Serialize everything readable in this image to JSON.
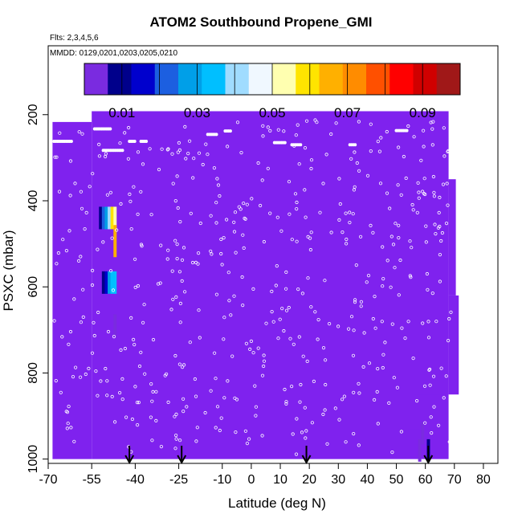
{
  "title": "ATOM2 Southbound Propene_GMI",
  "notes": {
    "flights": "Flts: 2,3,4,5,6",
    "dates": "MMDD: 0129,0201,0203,0205,0210"
  },
  "chart_data": {
    "type": "heatmap",
    "title": "ATOM2 Southbound Propene_GMI",
    "xlabel": "Latitude (deg N)",
    "ylabel": "PSXC (mbar)",
    "xlim": [
      -70,
      85
    ],
    "ylim": [
      1010,
      40
    ],
    "xticks": [
      -70,
      -55,
      -40,
      -25,
      -10,
      0,
      10,
      20,
      30,
      40,
      50,
      60,
      70,
      80
    ],
    "xtick_labels": [
      "-70",
      "-55",
      "-40",
      "-25",
      "-10",
      "0",
      "10",
      "20",
      "30",
      "40",
      "50",
      "60",
      "70",
      "80"
    ],
    "yticks": [
      200,
      400,
      600,
      800,
      1000
    ],
    "ytick_labels": [
      "200",
      "400",
      "600",
      "800",
      "1000"
    ],
    "colorbar": {
      "range": [
        0,
        0.1
      ],
      "ticks": [
        0.01,
        0.03,
        0.05,
        0.07,
        0.09
      ],
      "tick_labels": [
        "0.01",
        "0.03",
        "0.05",
        "0.07",
        "0.09"
      ],
      "colors": [
        "#7a2be0",
        "#00008b",
        "#0000cd",
        "#1c5fe0",
        "#009fe8",
        "#00bfff",
        "#a0dcff",
        "#f0f8ff",
        "#ffffb0",
        "#ffe400",
        "#ffb000",
        "#ff8c00",
        "#ff5000",
        "#ff0000",
        "#d00000",
        "#a01818"
      ]
    },
    "background_value": 0.0,
    "background_color": "#7f22ee",
    "high_value_cells": [
      {
        "lat": -52.5,
        "p": 440,
        "value": 0.012
      },
      {
        "lat": -51.5,
        "p": 440,
        "value": 0.022
      },
      {
        "lat": -50.5,
        "p": 440,
        "value": 0.03
      },
      {
        "lat": -49.5,
        "p": 440,
        "value": 0.042
      },
      {
        "lat": -48.5,
        "p": 440,
        "value": 0.058
      },
      {
        "lat": -47.5,
        "p": 440,
        "value": 0.05
      },
      {
        "lat": -47.5,
        "p": 490,
        "value": 0.065
      },
      {
        "lat": -51.5,
        "p": 590,
        "value": 0.008
      },
      {
        "lat": -50.5,
        "p": 590,
        "value": 0.018
      },
      {
        "lat": -49.5,
        "p": 590,
        "value": 0.028
      },
      {
        "lat": -48.5,
        "p": 590,
        "value": 0.034
      },
      {
        "lat": -47.5,
        "p": 590,
        "value": 0.036
      },
      {
        "lat": -47.5,
        "p": 690,
        "value": 0.004
      },
      {
        "lat": 57.5,
        "p": 980,
        "value": 0.006
      },
      {
        "lat": 60.5,
        "p": 980,
        "value": 0.008
      },
      {
        "lat": 58.5,
        "p": 940,
        "value": 0.003
      }
    ],
    "arrows_lat": [
      -42,
      -24,
      19,
      61
    ]
  }
}
